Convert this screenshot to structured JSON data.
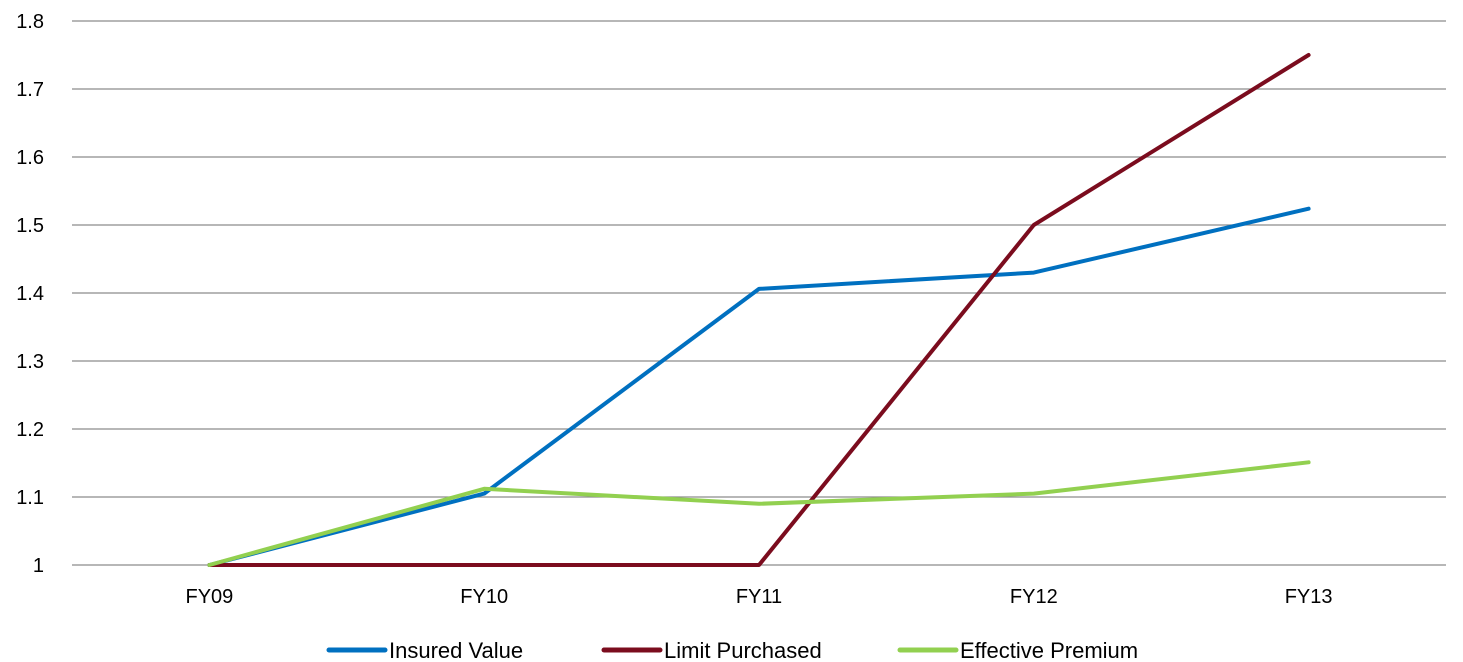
{
  "chart_data": {
    "type": "line",
    "categories": [
      "FY09",
      "FY10",
      "FY11",
      "FY12",
      "FY13"
    ],
    "series": [
      {
        "name": "Insured Value",
        "color": "#0070c0",
        "values": [
          1.0,
          1.105,
          1.406,
          1.43,
          1.524
        ]
      },
      {
        "name": "Limit Purchased",
        "color": "#7b0c1e",
        "values": [
          1.0,
          1.0,
          1.0,
          1.5,
          1.75
        ]
      },
      {
        "name": "Effective Premium",
        "color": "#92d050",
        "values": [
          1.0,
          1.112,
          1.09,
          1.105,
          1.151
        ]
      }
    ],
    "yticks": [
      "1",
      "1.1",
      "1.2",
      "1.3",
      "1.4",
      "1.5",
      "1.6",
      "1.7",
      "1.8"
    ],
    "ylim": [
      1.0,
      1.8
    ],
    "grid": true,
    "legend_position": "bottom",
    "gridline_color": "#8c8c8c"
  }
}
